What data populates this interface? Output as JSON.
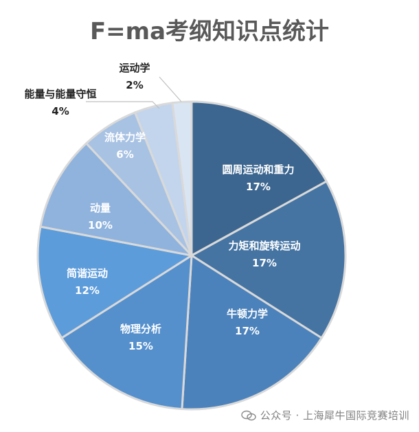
{
  "chart_data": {
    "type": "pie",
    "title": "F=ma考纲知识点统计",
    "slices": [
      {
        "label": "圆周运动和重力",
        "value": 17,
        "value_label": "17%",
        "color": "#3c6690"
      },
      {
        "label": "力矩和旋转运动",
        "value": 17,
        "value_label": "17%",
        "color": "#4574a3"
      },
      {
        "label": "牛顿力学",
        "value": 17,
        "value_label": "17%",
        "color": "#4c82bb"
      },
      {
        "label": "物理分析",
        "value": 15,
        "value_label": "15%",
        "color": "#5590cd"
      },
      {
        "label": "简谐运动",
        "value": 12,
        "value_label": "12%",
        "color": "#5d9cdb"
      },
      {
        "label": "动量",
        "value": 10,
        "value_label": "10%",
        "color": "#8fb3dd"
      },
      {
        "label": "流体力学",
        "value": 6,
        "value_label": "6%",
        "color": "#a8c2e3"
      },
      {
        "label": "能量与能量守恒",
        "value": 4,
        "value_label": "4%",
        "color": "#c3d5ec"
      },
      {
        "label": "运动学",
        "value": 2,
        "value_label": "2%",
        "color": "#dae5f3"
      }
    ],
    "legend": "none"
  },
  "watermark": {
    "text": "公众号 · 上海犀牛国际竞赛培训"
  },
  "colors": {
    "label_light": "#ffffff",
    "label_dark": "#222222",
    "slice_border": "#d9d9d9"
  }
}
